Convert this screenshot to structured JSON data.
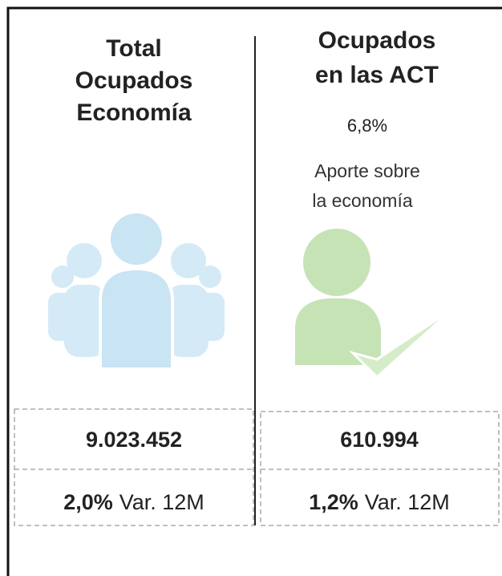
{
  "left": {
    "title": [
      "Total",
      "Ocupados",
      "Economía"
    ],
    "value": "9.023.452",
    "variation": "2,0%",
    "variation_label": "Var. 12M"
  },
  "right": {
    "title": [
      "Ocupados",
      "en las ACT"
    ],
    "share": "6,8%",
    "share_label": [
      "Aporte sobre",
      "la economía"
    ],
    "value": "610.994",
    "variation": "1,2%",
    "variation_label": "Var. 12M"
  }
}
